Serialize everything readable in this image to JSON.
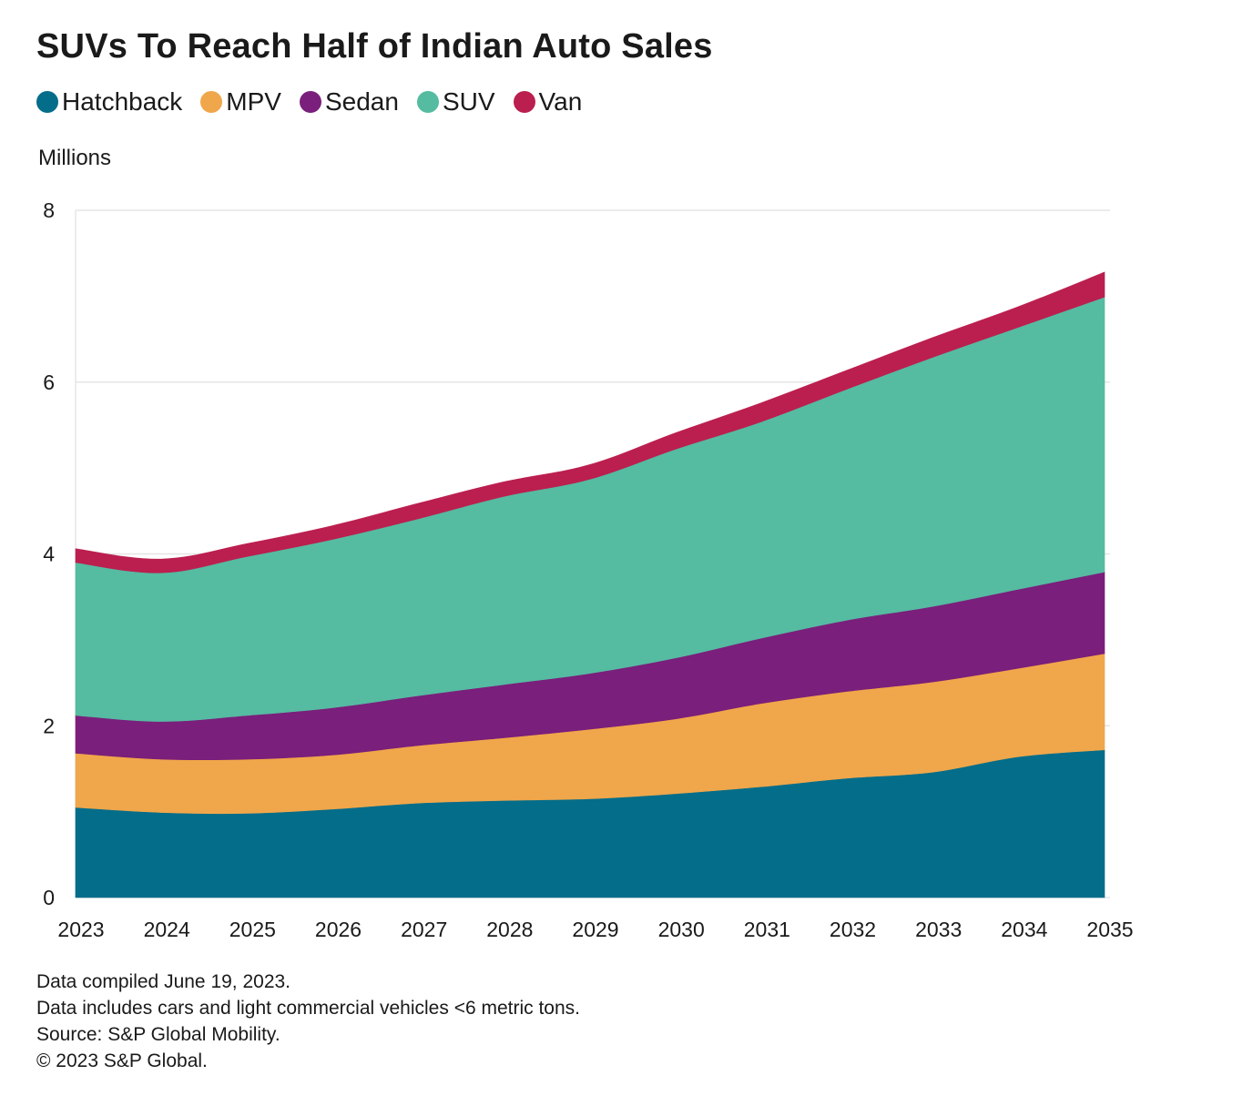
{
  "chart_data": {
    "type": "area",
    "stacked": true,
    "title": "SUVs To Reach Half of Indian Auto Sales",
    "ylabel": "Millions",
    "xlabel": "",
    "categories": [
      "2023",
      "2024",
      "2025",
      "2026",
      "2027",
      "2028",
      "2029",
      "2030",
      "2031",
      "2032",
      "2033",
      "2034",
      "2035"
    ],
    "ylim": [
      0,
      8
    ],
    "yticks": [
      0,
      2,
      4,
      6,
      8
    ],
    "grid": true,
    "legend_position": "top",
    "series": [
      {
        "name": "Hatchback",
        "color": "#046d8a",
        "values": [
          1.05,
          0.99,
          0.98,
          1.03,
          1.1,
          1.13,
          1.15,
          1.21,
          1.29,
          1.39,
          1.46,
          1.64,
          1.72
        ]
      },
      {
        "name": "MPV",
        "color": "#f0a64a",
        "values": [
          0.63,
          0.62,
          0.63,
          0.63,
          0.67,
          0.73,
          0.81,
          0.87,
          0.97,
          1.01,
          1.05,
          1.03,
          1.12
        ]
      },
      {
        "name": "Sedan",
        "color": "#7a1f7b",
        "values": [
          0.44,
          0.44,
          0.51,
          0.55,
          0.58,
          0.62,
          0.65,
          0.71,
          0.76,
          0.83,
          0.88,
          0.92,
          0.95
        ]
      },
      {
        "name": "SUV",
        "color": "#55bba1",
        "values": [
          1.78,
          1.73,
          1.85,
          1.96,
          2.06,
          2.19,
          2.26,
          2.43,
          2.52,
          2.69,
          2.9,
          3.05,
          3.2
        ]
      },
      {
        "name": "Van",
        "color": "#bb1f4f",
        "values": [
          0.16,
          0.16,
          0.15,
          0.16,
          0.18,
          0.17,
          0.17,
          0.19,
          0.22,
          0.22,
          0.23,
          0.24,
          0.29
        ]
      }
    ]
  },
  "footer": {
    "line1": "Data compiled June 19, 2023.",
    "line2": "Data includes cars and light commercial vehicles <6 metric tons.",
    "line3": "Source: S&P Global Mobility.",
    "line4": "© 2023 S&P Global."
  }
}
